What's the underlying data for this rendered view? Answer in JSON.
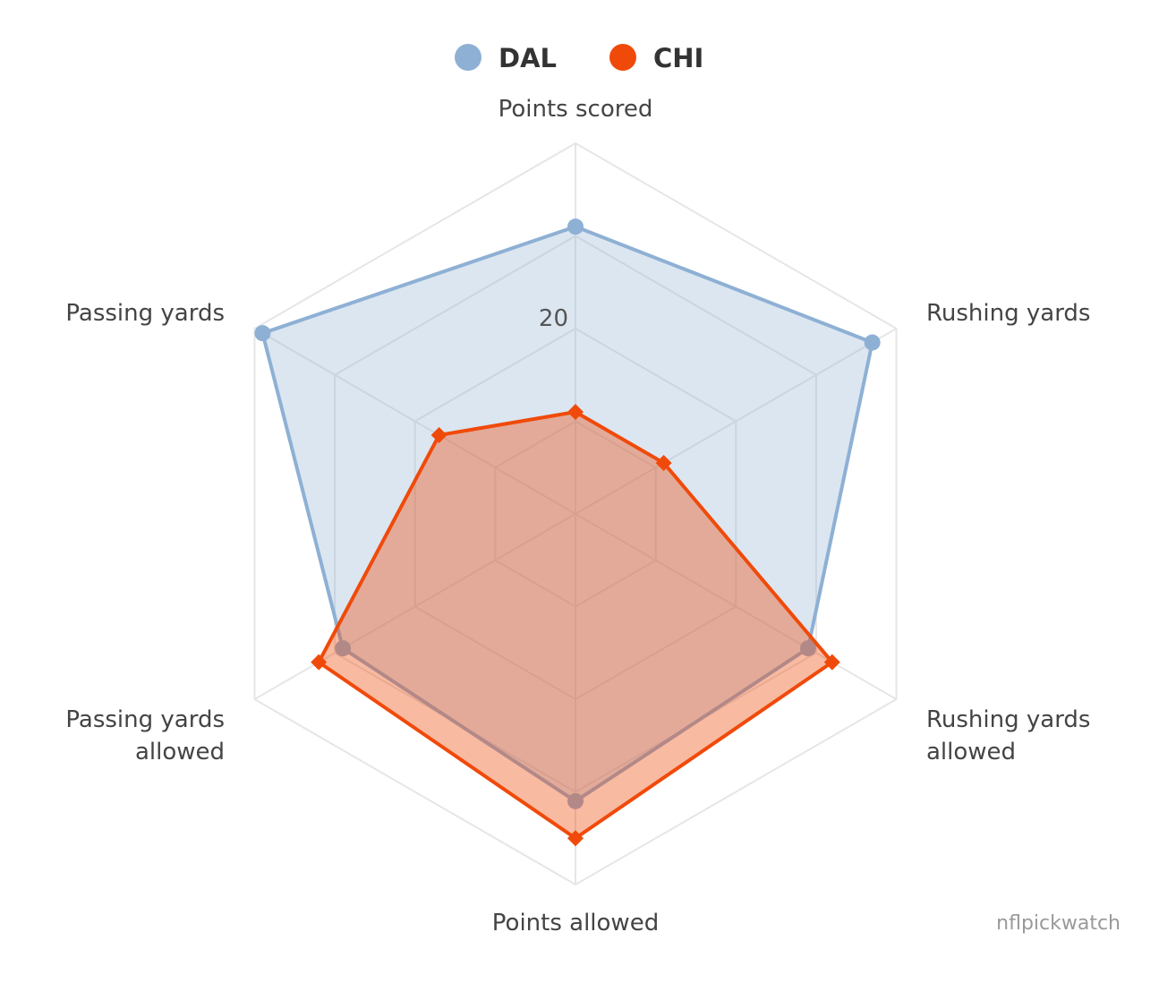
{
  "chart_data": {
    "type": "radar",
    "title": "",
    "axes": [
      "Points scored",
      "Rushing yards",
      "Rushing yards allowed",
      "Points allowed",
      "Passing yards allowed",
      "Passing yards"
    ],
    "axis_label_lines": [
      [
        "Points scored"
      ],
      [
        "Rushing yards"
      ],
      [
        "Rushing yards",
        "allowed"
      ],
      [
        "Points allowed"
      ],
      [
        "Passing yards",
        "allowed"
      ],
      [
        "Passing yards"
      ]
    ],
    "radial_max": 40,
    "radial_ticks": [
      20
    ],
    "tick_labels": [
      "20"
    ],
    "grid_levels": 4,
    "gridlines": true,
    "legend_position": "top-center",
    "series": [
      {
        "name": "DAL",
        "color": "#8eb0d4",
        "marker": "circle",
        "values": [
          31,
          37,
          29,
          31,
          29,
          39
        ]
      },
      {
        "name": "CHI",
        "color": "#f04a0a",
        "marker": "diamond",
        "values": [
          11,
          11,
          32,
          35,
          32,
          17
        ]
      }
    ],
    "credit": "nflpickwatch"
  }
}
